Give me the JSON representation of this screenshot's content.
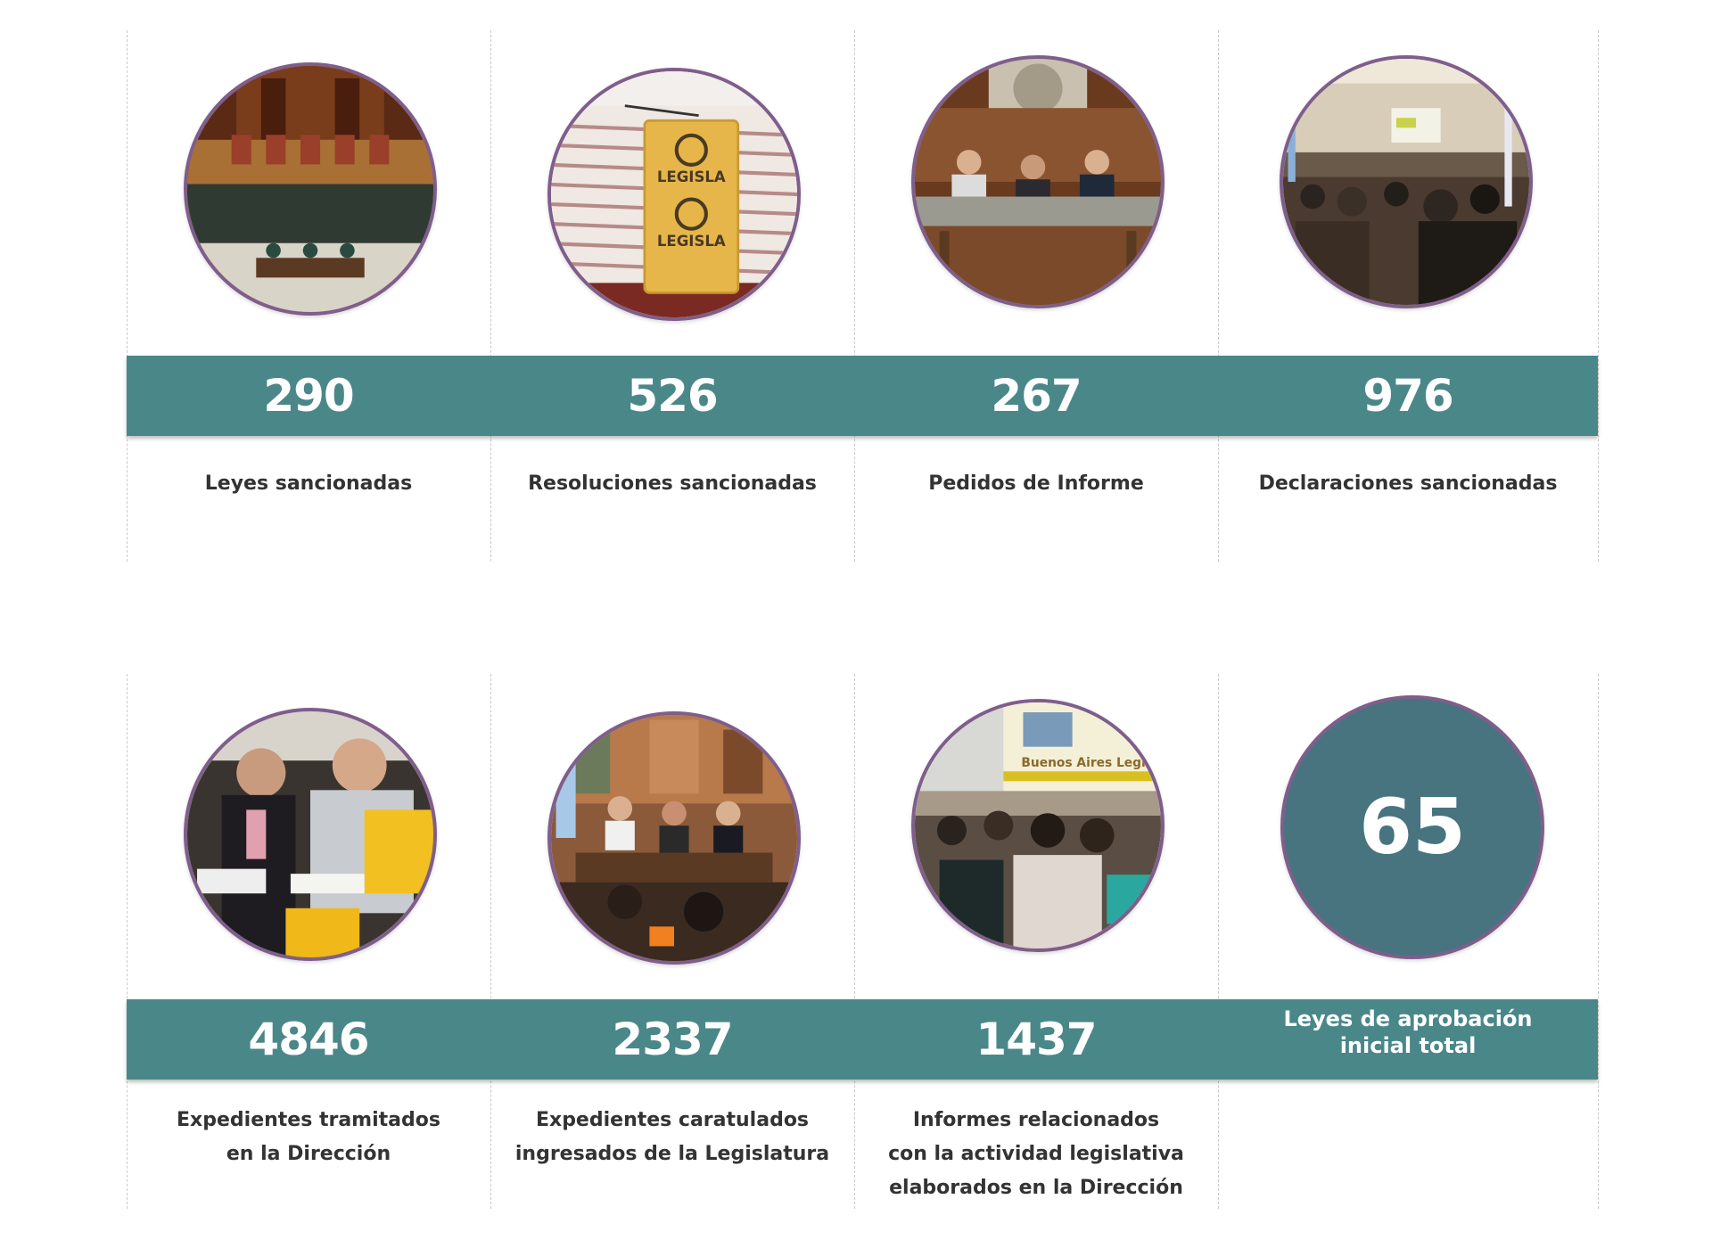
{
  "row1": {
    "items": [
      {
        "number": "290",
        "caption": "Leyes sancionadas",
        "photo": "legislature-chamber-photo"
      },
      {
        "number": "526",
        "caption": "Resoluciones sancionadas",
        "photo": "legisla-badge-photo"
      },
      {
        "number": "267",
        "caption": "Pedidos de Informe",
        "photo": "panel-table-photo"
      },
      {
        "number": "976",
        "caption": "Declaraciones sancionadas",
        "photo": "audience-presentation-photo"
      }
    ]
  },
  "row2": {
    "items": [
      {
        "number": "4846",
        "caption_lines": [
          "Expedientes tramitados",
          "en la Dirección"
        ],
        "photo": "students-reading-photo"
      },
      {
        "number": "2337",
        "caption_lines": [
          "Expedientes caratulados",
          "ingresados de la Legislatura"
        ],
        "photo": "panel-mural-photo"
      },
      {
        "number": "1437",
        "caption_lines": [
          "Informes relacionados",
          "con la actividad legislativa",
          "elaborados en la Dirección"
        ],
        "photo": "classroom-projection-photo"
      },
      {
        "circle_number": "65",
        "band_lines": [
          "Leyes de aprobación",
          "inicial total"
        ]
      }
    ],
    "projection_text": "Buenos Aires Legis"
  },
  "badge_text": "LEGISLA",
  "colors": {
    "band": "#4a8789",
    "circle_border": "#7f5e8b",
    "number_circle": "#47747f",
    "caption": "#333333"
  }
}
